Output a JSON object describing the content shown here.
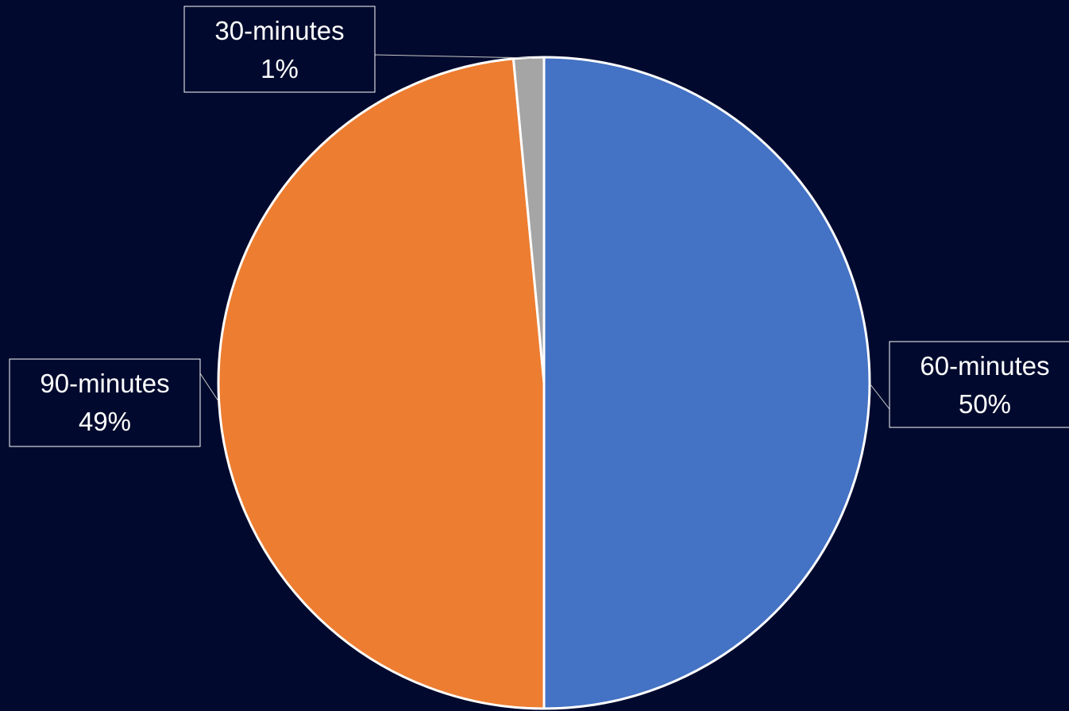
{
  "chart_data": {
    "type": "pie",
    "start_angle_deg": 0,
    "direction": "clockwise",
    "slices": [
      {
        "label": "60-minutes",
        "value": 50,
        "percent_label": "50%",
        "color": "#4472c4"
      },
      {
        "label": "90-minutes",
        "value": 48.5,
        "percent_label": "49%",
        "color": "#ed7d31"
      },
      {
        "label": "30-minutes",
        "value": 1.5,
        "percent_label": "1%",
        "color": "#a5a5a5"
      }
    ],
    "legend": "none",
    "background": "#010a2e",
    "slice_border_color": "#ffffff"
  }
}
